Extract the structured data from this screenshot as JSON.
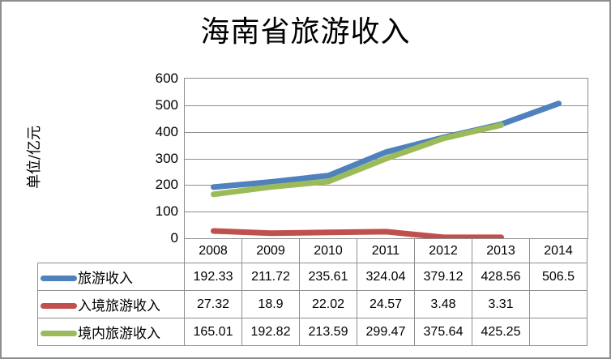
{
  "chart_data": {
    "type": "line",
    "title": "海南省旅游收入",
    "ylabel": "单位/亿元",
    "xlabel": "",
    "ylim": [
      0,
      600
    ],
    "yticks": [
      600,
      500,
      400,
      300,
      200,
      100,
      0
    ],
    "grid": true,
    "legend_position": "left-of-data-table",
    "data_table_shown": true,
    "categories": [
      "2008",
      "2009",
      "2010",
      "2011",
      "2012",
      "2013",
      "2014"
    ],
    "series": [
      {
        "name": "旅游收入",
        "key": "tourism-revenue",
        "color": "#4F81BD",
        "values": [
          192.33,
          211.72,
          235.61,
          324.04,
          379.12,
          428.56,
          506.5
        ]
      },
      {
        "name": "入境旅游收入",
        "key": "inbound-tourism-revenue",
        "color": "#C0504D",
        "values": [
          27.32,
          18.9,
          22.02,
          24.57,
          3.48,
          3.31,
          null
        ]
      },
      {
        "name": "境内旅游收入",
        "key": "domestic-tourism-revenue",
        "color": "#9BBB59",
        "values": [
          165.01,
          192.82,
          213.59,
          299.47,
          375.64,
          425.25,
          null
        ]
      }
    ]
  }
}
